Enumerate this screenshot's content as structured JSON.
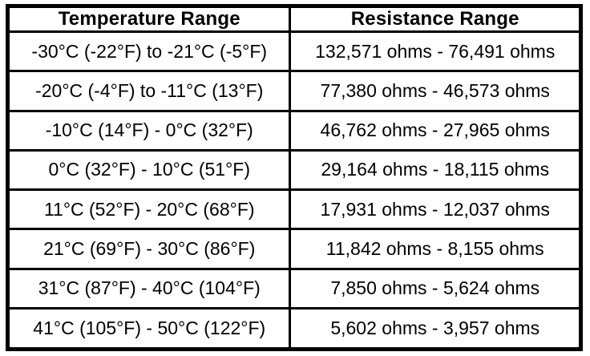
{
  "colors": {
    "background": "#ffffff",
    "border": "#000000",
    "text": "#000000"
  },
  "table": {
    "headers": [
      "Temperature Range",
      "Resistance Range"
    ],
    "rows": [
      [
        "-30°C (-22°F) to -21°C (-5°F)",
        "132,571 ohms - 76,491 ohms"
      ],
      [
        "-20°C (-4°F) to -11°C (13°F)",
        "77,380 ohms - 46,573 ohms"
      ],
      [
        "-10°C (14°F) - 0°C (32°F)",
        "46,762 ohms - 27,965 ohms"
      ],
      [
        "0°C (32°F) - 10°C (51°F)",
        "29,164 ohms - 18,115 ohms"
      ],
      [
        "11°C (52°F) - 20°C (68°F)",
        "17,931 ohms - 12,037 ohms"
      ],
      [
        "21°C (69°F) - 30°C (86°F)",
        "11,842 ohms - 8,155 ohms"
      ],
      [
        "31°C (87°F) - 40°C (104°F)",
        "7,850 ohms - 5,624 ohms"
      ],
      [
        "41°C (105°F) - 50°C (122°F)",
        "5,602 ohms - 3,957 ohms"
      ]
    ]
  }
}
